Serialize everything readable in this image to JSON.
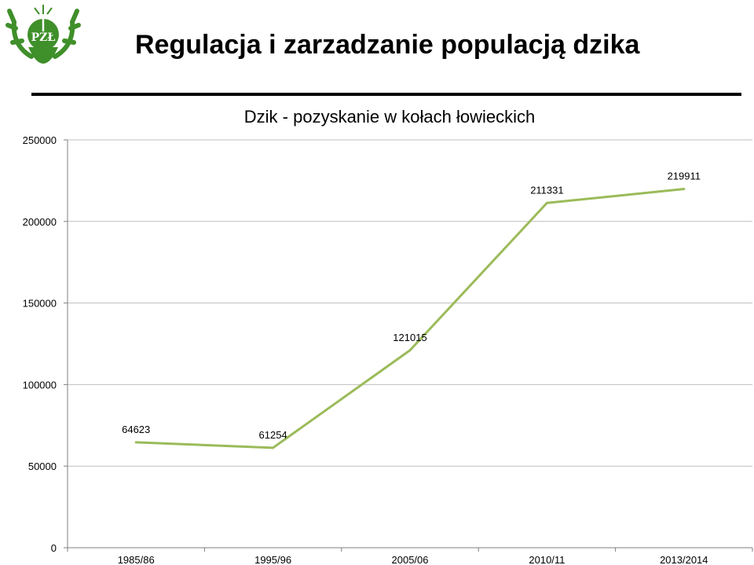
{
  "header": {
    "title": "Regulacja i zarzadzanie populacją dzika",
    "logo_text": "PZŁ"
  },
  "colors": {
    "series_line": "#9bbb59",
    "logo_green": "#3f8f2a",
    "gridline": "#bfbfbf"
  },
  "chart_data": {
    "type": "line",
    "title": "Dzik - pozyskanie w kołach łowieckich",
    "categories": [
      "1985/86",
      "1995/96",
      "2005/06",
      "2010/11",
      "2013/2014"
    ],
    "values": [
      64623,
      61254,
      121015,
      211331,
      219911
    ],
    "data_labels": [
      "64623",
      "61254",
      "121015",
      "211331",
      "219911"
    ],
    "ylim": [
      0,
      250000
    ],
    "yticks": [
      0,
      50000,
      100000,
      150000,
      200000,
      250000
    ],
    "ytick_labels": [
      "0",
      "50000",
      "100000",
      "150000",
      "200000",
      "250000"
    ],
    "grid": true,
    "legend": "none"
  }
}
